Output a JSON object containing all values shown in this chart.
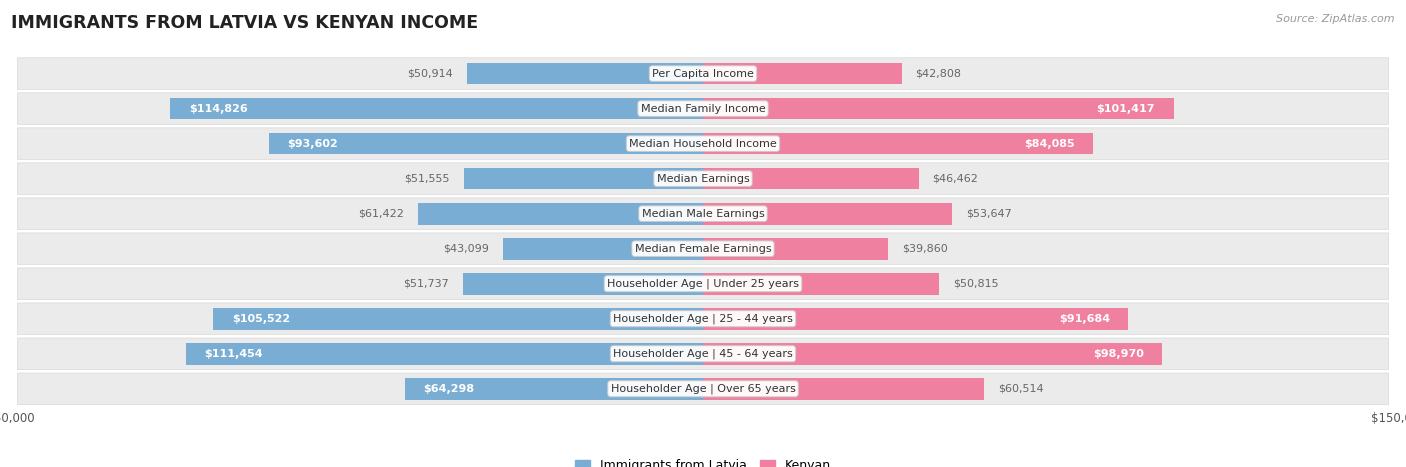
{
  "title": "IMMIGRANTS FROM LATVIA VS KENYAN INCOME",
  "source": "Source: ZipAtlas.com",
  "categories": [
    "Per Capita Income",
    "Median Family Income",
    "Median Household Income",
    "Median Earnings",
    "Median Male Earnings",
    "Median Female Earnings",
    "Householder Age | Under 25 years",
    "Householder Age | 25 - 44 years",
    "Householder Age | 45 - 64 years",
    "Householder Age | Over 65 years"
  ],
  "latvia_values": [
    50914,
    114826,
    93602,
    51555,
    61422,
    43099,
    51737,
    105522,
    111454,
    64298
  ],
  "kenyan_values": [
    42808,
    101417,
    84085,
    46462,
    53647,
    39860,
    50815,
    91684,
    98970,
    60514
  ],
  "latvia_labels": [
    "$50,914",
    "$114,826",
    "$93,602",
    "$51,555",
    "$61,422",
    "$43,099",
    "$51,737",
    "$105,522",
    "$111,454",
    "$64,298"
  ],
  "kenyan_labels": [
    "$42,808",
    "$101,417",
    "$84,085",
    "$46,462",
    "$53,647",
    "$39,860",
    "$50,815",
    "$91,684",
    "$98,970",
    "$60,514"
  ],
  "latvia_color": "#7aadd4",
  "kenyan_color": "#f080a0",
  "max_val": 150000,
  "bar_height": 0.62,
  "row_bg_color": "#ebebeb",
  "row_border_color": "#d8d8d8",
  "background_color": "#ffffff",
  "inside_threshold": 62000,
  "label_font_size": 8.0,
  "cat_font_size": 8.0
}
